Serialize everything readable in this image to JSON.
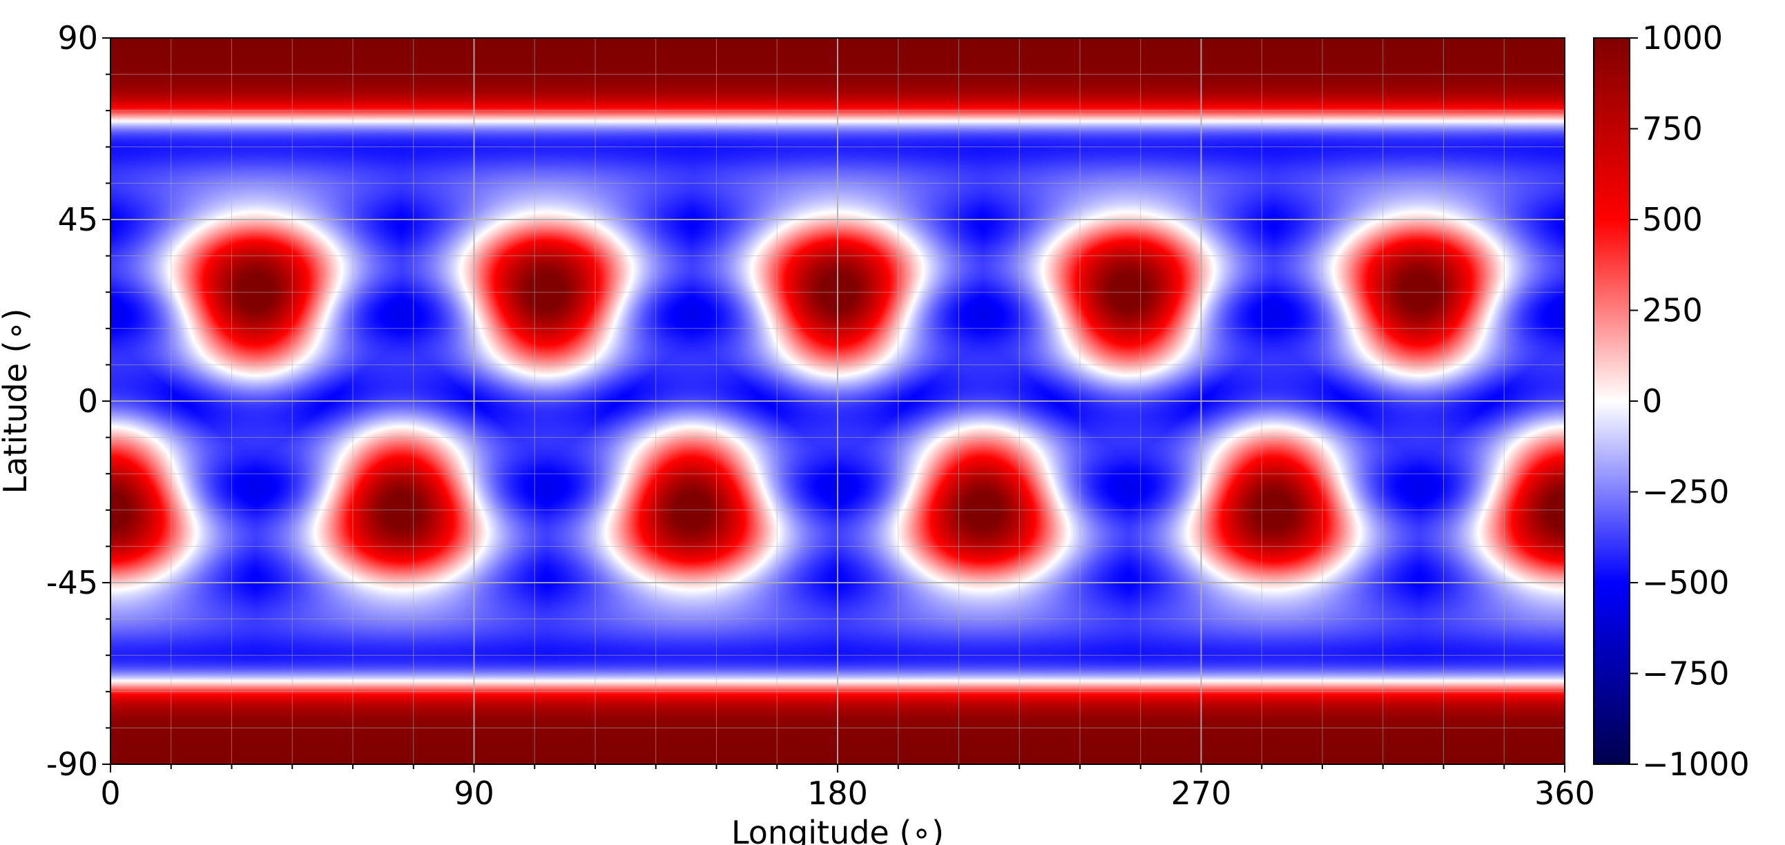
{
  "chart_data": {
    "type": "heatmap",
    "title": "",
    "xlabel": "Longitude (∘)",
    "ylabel": "Latitude (∘)",
    "xlim": [
      0,
      360
    ],
    "ylim": [
      -90,
      90
    ],
    "grid": true,
    "x_ticks": [
      0,
      90,
      180,
      270,
      360
    ],
    "x_tick_labels": [
      "0",
      "90",
      "180",
      "270",
      "360"
    ],
    "y_ticks": [
      90,
      45,
      0,
      -45,
      -90
    ],
    "y_tick_labels": [
      "90",
      "45",
      "0",
      "-45",
      "-90"
    ],
    "colormap": "seismic",
    "colorbar": {
      "range": [
        -1000,
        1000
      ],
      "ticks": [
        1000,
        750,
        500,
        250,
        0,
        -250,
        -500,
        -750,
        -1000
      ],
      "tick_labels": [
        "1000",
        "750",
        "500",
        "250",
        "0",
        "−250",
        "−500",
        "−750",
        "−1000"
      ]
    },
    "field": {
      "description_of_pattern": "",
      "zonal_wavenumber": 5,
      "extrema": [
        {
          "lon": 36,
          "lat": 27,
          "value": 1000
        },
        {
          "lon": 108,
          "lat": 27,
          "value": 1000
        },
        {
          "lon": 180,
          "lat": 27,
          "value": 1000
        },
        {
          "lon": 252,
          "lat": 27,
          "value": 1000
        },
        {
          "lon": 324,
          "lat": 27,
          "value": 1000
        },
        {
          "lon": 0,
          "lat": -27,
          "value": 1000
        },
        {
          "lon": 72,
          "lat": -27,
          "value": 1000
        },
        {
          "lon": 144,
          "lat": -27,
          "value": 1000
        },
        {
          "lon": 216,
          "lat": -27,
          "value": 1000
        },
        {
          "lon": 288,
          "lat": -27,
          "value": 1000
        },
        {
          "lon": 360,
          "lat": -27,
          "value": 1000
        }
      ],
      "polar_band_value": 1000,
      "background_value": -500
    }
  }
}
